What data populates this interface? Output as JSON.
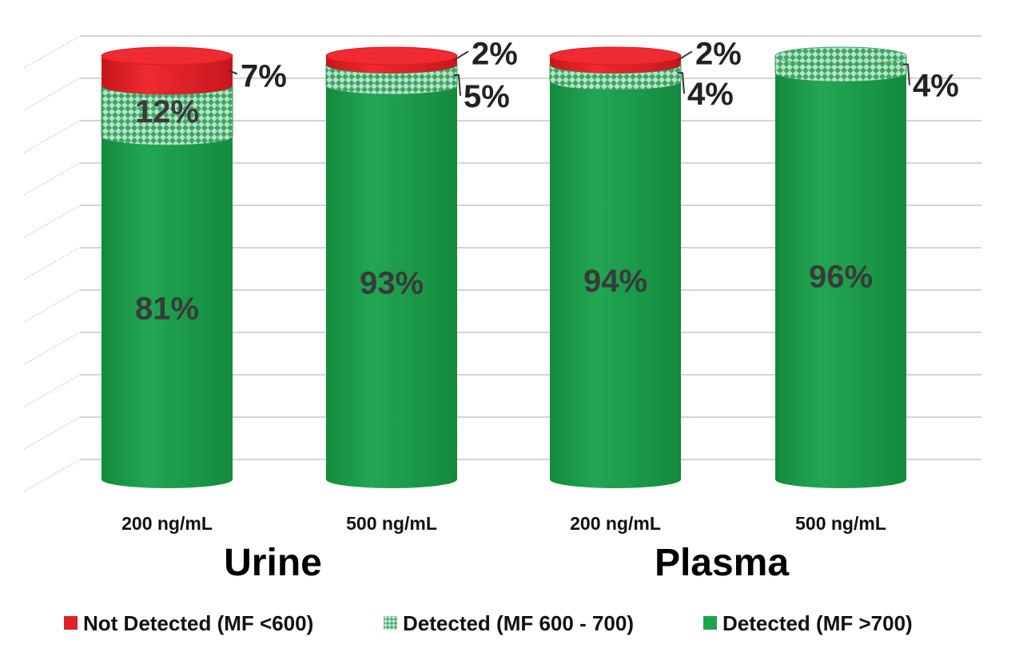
{
  "chart_data": {
    "type": "bar",
    "stacked": true,
    "style": "3d-cylinder",
    "grid": true,
    "legend_position": "bottom",
    "ylim": [
      0,
      100
    ],
    "categories": [
      "200 ng/mL",
      "500 ng/mL",
      "200 ng/mL",
      "500 ng/mL"
    ],
    "groups": [
      {
        "label": "Urine",
        "categories": [
          0,
          1
        ]
      },
      {
        "label": "Plasma",
        "categories": [
          2,
          3
        ]
      }
    ],
    "series": [
      {
        "name": "Detected (MF >700)",
        "color": "#1a9a48",
        "values": [
          81,
          93,
          94,
          96
        ]
      },
      {
        "name": "Detected (MF 600 - 700)",
        "color": "#9fd0b2",
        "values": [
          12,
          5,
          4,
          4
        ]
      },
      {
        "name": "Not Detected (MF <600)",
        "color": "#e01e26",
        "values": [
          7,
          2,
          2,
          0
        ]
      }
    ],
    "data_labels": [
      [
        "81%",
        "12%",
        "7%"
      ],
      [
        "93%",
        "5%",
        "2%"
      ],
      [
        "94%",
        "4%",
        "2%"
      ],
      [
        "96%",
        "4%",
        ""
      ]
    ],
    "legend_order": [
      2,
      1,
      0
    ]
  }
}
